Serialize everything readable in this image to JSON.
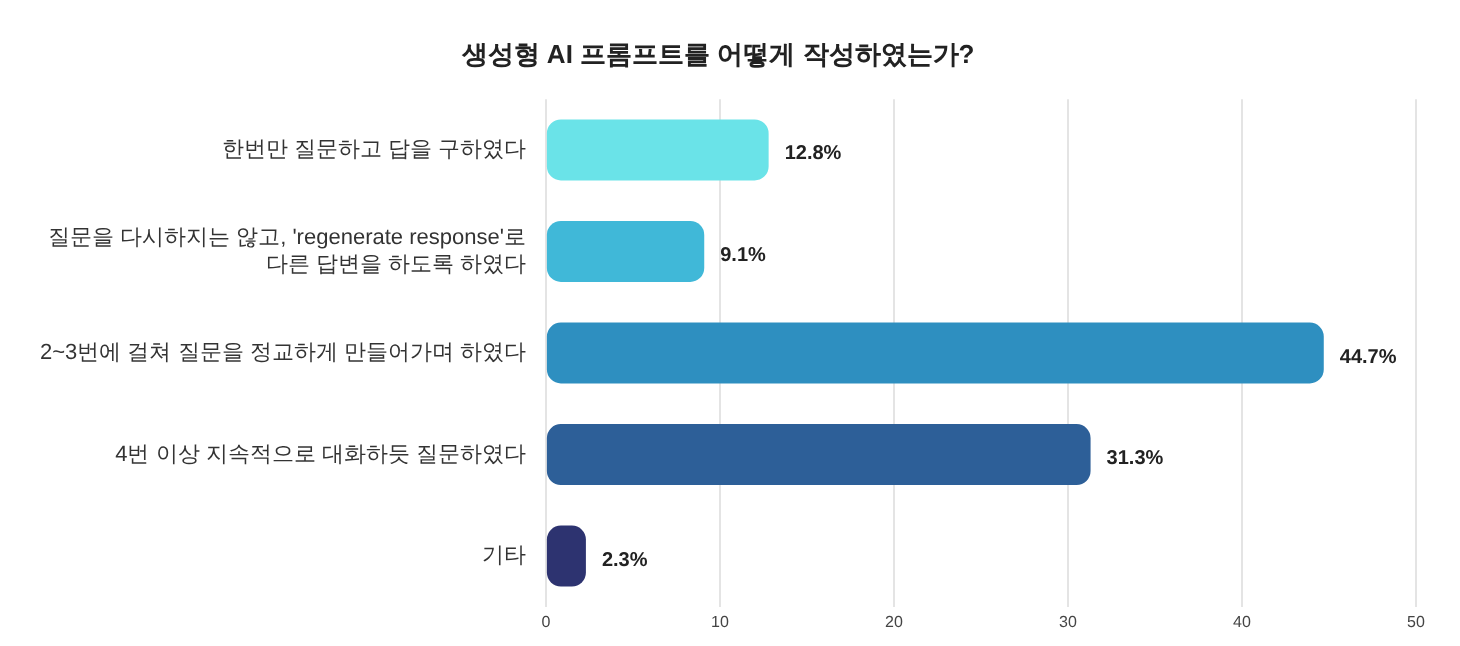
{
  "chart_data": {
    "type": "bar",
    "orientation": "horizontal",
    "title": "생성형 AI 프롬프트를 어떻게 작성하였는가?",
    "categories": [
      "한번만 질문하고 답을 구하였다",
      "질문을 다시하지는 않고, 'regenerate response'로\n다른 답변을 하도록 하였다",
      "2~3번에 걸쳐 질문을 정교하게 만들어가며 하였다",
      "4번 이상 지속적으로 대화하듯 질문하였다",
      "기타"
    ],
    "values": [
      12.8,
      9.1,
      44.7,
      31.3,
      2.3
    ],
    "colors": [
      "#6ae3e8",
      "#40b8d8",
      "#2e8fc0",
      "#2d5f98",
      "#2d3370"
    ],
    "value_labels": [
      "12.8%",
      "9.1%",
      "44.7%",
      "31.3%",
      "2.3%"
    ],
    "xlim": [
      0,
      50
    ],
    "xticks": [
      0,
      10,
      20,
      30,
      40,
      50
    ],
    "grid": "x",
    "legend": false
  }
}
